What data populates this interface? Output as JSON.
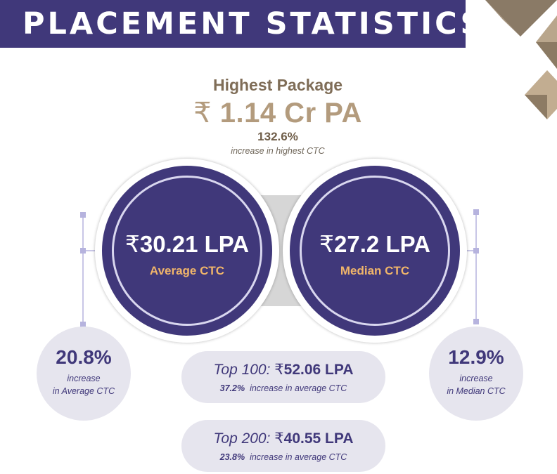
{
  "header": {
    "title": "PLACEMENT STATISTICS"
  },
  "highest_package": {
    "label": "Highest Package",
    "currency": "₹",
    "value": "1.14 Cr PA",
    "increase_pct": "132.6%",
    "caption": "increase in highest CTC"
  },
  "circles": [
    {
      "currency": "₹",
      "value": "30.21 LPA",
      "label": "Average CTC"
    },
    {
      "currency": "₹",
      "value": "27.2 LPA",
      "label": "Median CTC"
    }
  ],
  "side_stats": [
    {
      "pct": "20.8%",
      "line1": "increase",
      "line2": "in Average CTC"
    },
    {
      "pct": "12.9%",
      "line1": "increase",
      "line2": "in Median CTC"
    }
  ],
  "pills": [
    {
      "prefix": "Top 100:",
      "currency": "₹",
      "value": "52.06 LPA",
      "pct": "37.2%",
      "caption": "increase in average CTC"
    },
    {
      "prefix": "Top 200:",
      "currency": "₹",
      "value": "40.55 LPA",
      "pct": "23.8%",
      "caption": "increase in average CTC"
    }
  ],
  "colors": {
    "primary": "#40387a",
    "gold": "#b39b7d",
    "accent_orange": "#f0b56a",
    "bubble": "#e6e5ee"
  }
}
